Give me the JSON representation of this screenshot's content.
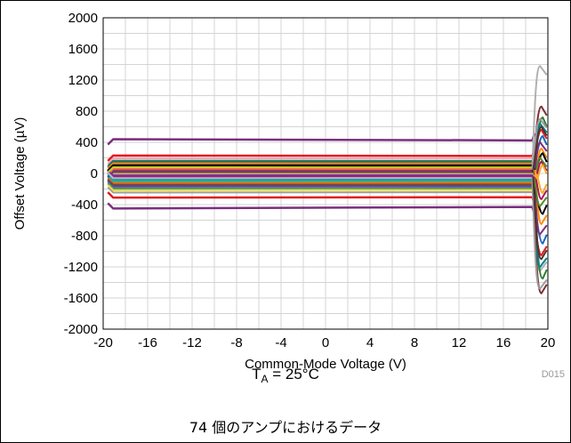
{
  "chart_data": {
    "type": "line",
    "title": "",
    "xlabel": "Common-Mode Voltage (V)",
    "ylabel": "Offset Voltage (µV)",
    "xlim": [
      -20,
      20
    ],
    "ylim": [
      -2000,
      2000
    ],
    "xticks": [
      "-20",
      "-16",
      "-12",
      "-8",
      "-4",
      "0",
      "4",
      "8",
      "12",
      "16",
      "20"
    ],
    "yticks": [
      "2000",
      "1600",
      "1200",
      "800",
      "400",
      "0",
      "-400",
      "-800",
      "-1200",
      "-1600",
      "-2000"
    ],
    "grid": true,
    "legend": "none",
    "figure_code": "D015",
    "num_units": 74,
    "flat_region": [
      -19.1,
      18.6
    ],
    "series": [
      {
        "color": "#7B2E7E",
        "values": [
          440,
          425
        ]
      },
      {
        "color": "#7B2E7E",
        "values": [
          -450,
          -430
        ]
      },
      {
        "color": "#E31A1C",
        "values": [
          230,
          225
        ]
      },
      {
        "color": "#E31A1C",
        "values": [
          -310,
          -305
        ]
      },
      {
        "color": "#F4A6C0",
        "values": [
          195,
          190
        ]
      },
      {
        "color": "#9E9E9E",
        "values": [
          -245,
          -240
        ]
      },
      {
        "color": "#2E7D32",
        "values": [
          165,
          160
        ]
      },
      {
        "color": "#1565C0",
        "values": [
          145,
          140
        ]
      },
      {
        "color": "#FF8C00",
        "values": [
          130,
          128
        ]
      },
      {
        "color": "#000000",
        "values": [
          95,
          92
        ]
      },
      {
        "color": "#8B4513",
        "values": [
          110,
          108
        ]
      },
      {
        "color": "#00838F",
        "values": [
          75,
          72
        ]
      },
      {
        "color": "#6A1B9A",
        "values": [
          55,
          52
        ]
      },
      {
        "color": "#C62828",
        "values": [
          35,
          33
        ]
      },
      {
        "color": "#558B2F",
        "values": [
          15,
          14
        ]
      },
      {
        "color": "#F9A825",
        "values": [
          -5,
          -6
        ]
      },
      {
        "color": "#283593",
        "values": [
          -25,
          -24
        ]
      },
      {
        "color": "#AD1457",
        "values": [
          -45,
          -44
        ]
      },
      {
        "color": "#4E342E",
        "values": [
          -65,
          -63
        ]
      },
      {
        "color": "#00ACC1",
        "values": [
          -85,
          -83
        ]
      },
      {
        "color": "#7CB342",
        "values": [
          -105,
          -103
        ]
      },
      {
        "color": "#EF6C00",
        "values": [
          -125,
          -123
        ]
      },
      {
        "color": "#5E35B1",
        "values": [
          -145,
          -143
        ]
      },
      {
        "color": "#D81B60",
        "values": [
          -165,
          -163
        ]
      },
      {
        "color": "#1E88E5",
        "values": [
          -185,
          -183
        ]
      },
      {
        "color": "#43A047",
        "values": [
          -200,
          -198
        ]
      },
      {
        "color": "#FDD835",
        "values": [
          -215,
          -212
        ]
      },
      {
        "color": "#6D4C41",
        "values": [
          -155,
          -150
        ]
      },
      {
        "color": "#26A69A",
        "values": [
          -95,
          -92
        ]
      },
      {
        "color": "#FF7043",
        "values": [
          60,
          58
        ]
      },
      {
        "color": "#3949AB",
        "values": [
          20,
          18
        ]
      },
      {
        "color": "#8E24AA",
        "values": [
          -30,
          -28
        ]
      },
      {
        "color": "#000000",
        "values": [
          100,
          98
        ]
      },
      {
        "color": "#B0BEC5",
        "values": [
          -60,
          -58
        ]
      },
      {
        "color": "#C0CA33",
        "values": [
          80,
          78
        ]
      }
    ],
    "tail_spikes": [
      {
        "color": "#B0B0B0",
        "values": [
          1380,
          -1250
        ]
      },
      {
        "color": "#7B2E2E",
        "values": [
          860,
          -1540
        ]
      },
      {
        "color": "#2E7D32",
        "values": [
          720,
          -1350
        ]
      },
      {
        "color": "#00838F",
        "values": [
          640,
          -1200
        ]
      },
      {
        "color": "#E31A1C",
        "values": [
          560,
          -1050
        ]
      },
      {
        "color": "#1565C0",
        "values": [
          480,
          -900
        ]
      },
      {
        "color": "#7B2E7E",
        "values": [
          400,
          -780
        ]
      },
      {
        "color": "#FF8C00",
        "values": [
          320,
          -650
        ]
      },
      {
        "color": "#000000",
        "values": [
          260,
          -520
        ]
      },
      {
        "color": "#558B2F",
        "values": [
          200,
          -420
        ]
      },
      {
        "color": "#AD1457",
        "values": [
          150,
          -330
        ]
      },
      {
        "color": "#F9A825",
        "values": [
          110,
          -250
        ]
      },
      {
        "color": "#9E9E9E",
        "values": [
          700,
          -1480
        ]
      },
      {
        "color": "#4E342E",
        "values": [
          600,
          -1100
        ]
      }
    ]
  },
  "conditions": {
    "ta_prefix": "T",
    "ta_sub": "A",
    "ta_value": " = 25°C",
    "note": "74 個のアンプにおけるデータ"
  }
}
